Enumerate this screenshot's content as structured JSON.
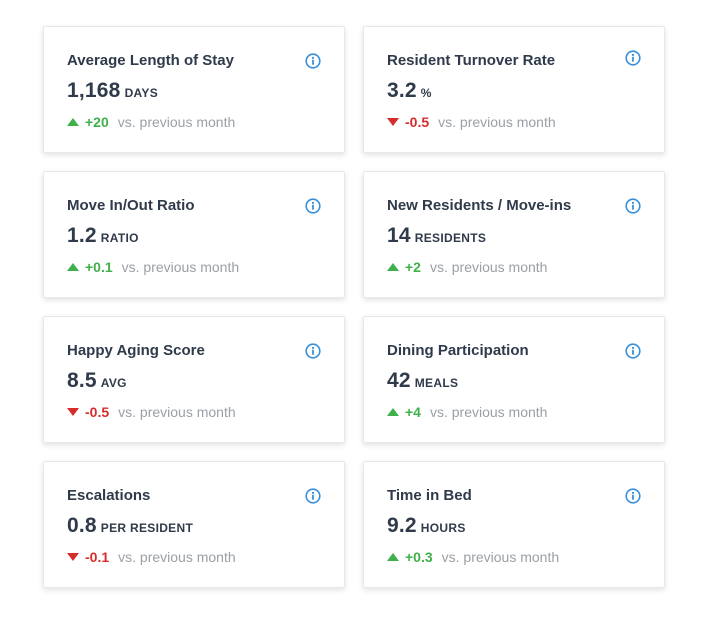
{
  "colors": {
    "up": "#3fb14a",
    "down": "#d72c2c",
    "info": "#3a8fd9",
    "text": "#2f3a4a",
    "muted": "#9aa0a6"
  },
  "cards": [
    {
      "title": "Average Length of Stay",
      "value": "1,168",
      "unit": "DAYS",
      "delta": "+20",
      "direction": "up",
      "comparison": "vs. previous month",
      "icon": "info-icon"
    },
    {
      "title": "Resident Turnover Rate",
      "value": "3.2",
      "unit": "%",
      "delta": "-0.5",
      "direction": "down",
      "comparison": "vs. previous month",
      "icon": "info-icon"
    },
    {
      "title": "Move In/Out Ratio",
      "value": "1.2",
      "unit": "RATIO",
      "delta": "+0.1",
      "direction": "up",
      "comparison": "vs. previous month",
      "icon": "info-icon"
    },
    {
      "title": "New Residents / Move-ins",
      "value": "14",
      "unit": "RESIDENTS",
      "delta": "+2",
      "direction": "up",
      "comparison": "vs. previous month",
      "icon": "info-icon"
    },
    {
      "title": "Happy Aging Score",
      "value": "8.5",
      "unit": "AVG",
      "delta": "-0.5",
      "direction": "down",
      "comparison": "vs. previous month",
      "icon": "info-icon"
    },
    {
      "title": "Dining Participation",
      "value": "42",
      "unit": "MEALS",
      "delta": "+4",
      "direction": "up",
      "comparison": "vs. previous month",
      "icon": "info-icon"
    },
    {
      "title": "Escalations",
      "value": "0.8",
      "unit": "PER RESIDENT",
      "delta": "-0.1",
      "direction": "down",
      "comparison": "vs. previous month",
      "icon": "info-icon"
    },
    {
      "title": "Time in Bed",
      "value": "9.2",
      "unit": "HOURS",
      "delta": "+0.3",
      "direction": "up",
      "comparison": "vs. previous month",
      "icon": "info-icon"
    }
  ]
}
